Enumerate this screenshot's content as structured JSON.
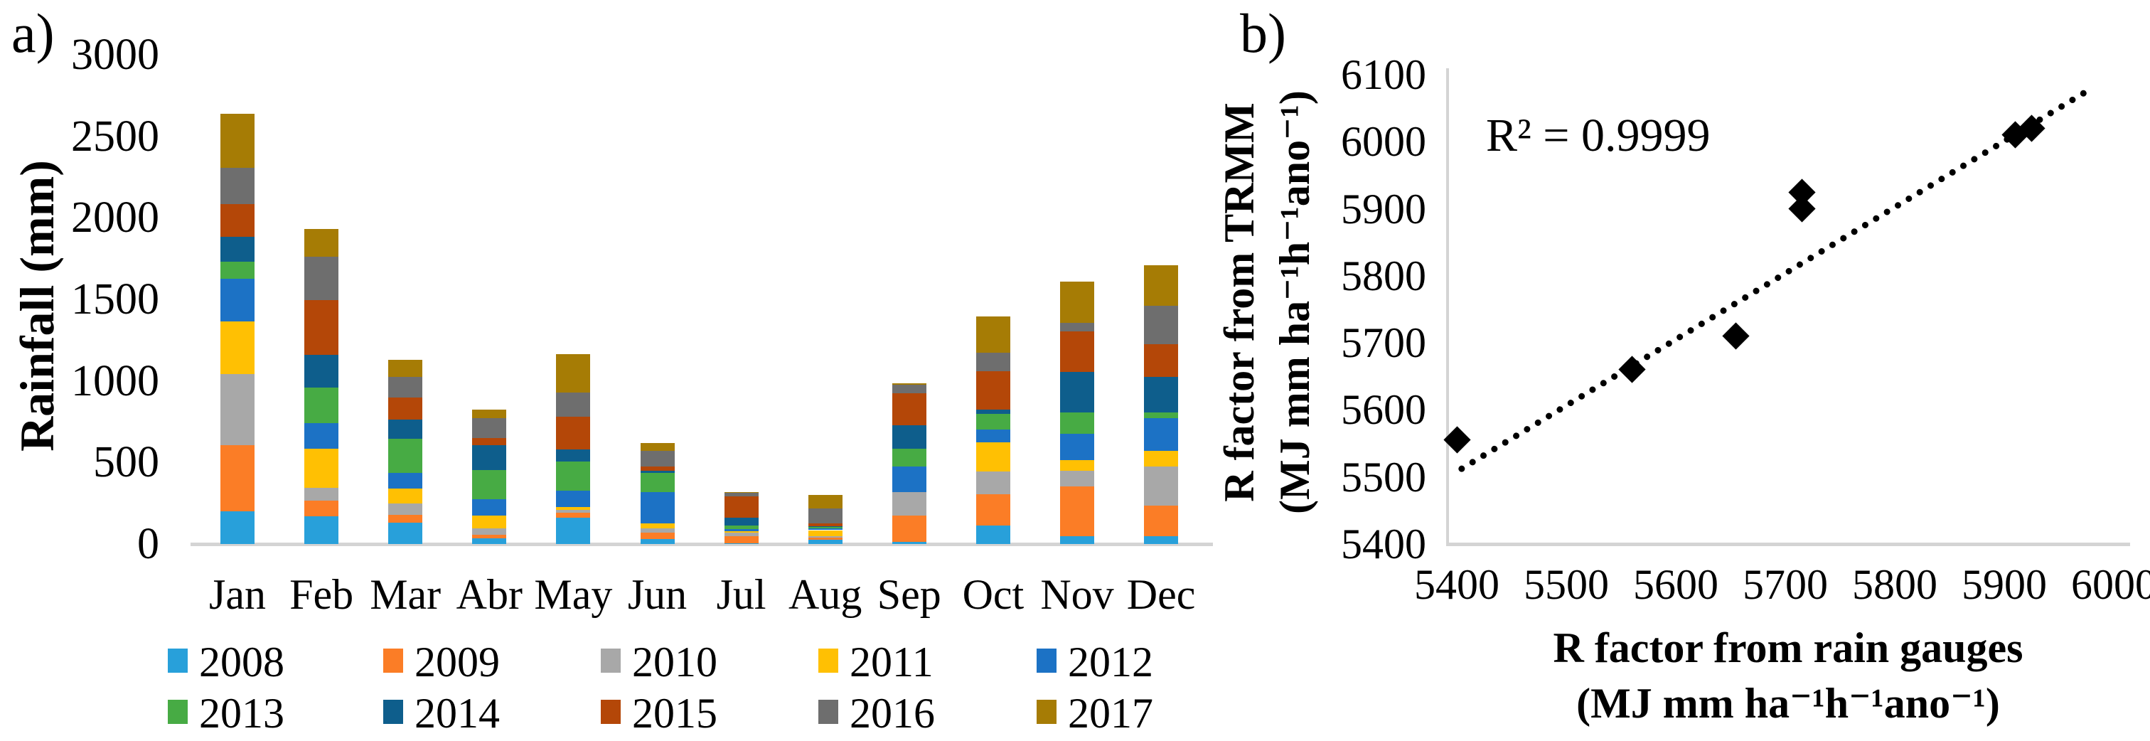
{
  "panels": {
    "a_label": "a)",
    "b_label": "b)"
  },
  "colors": {
    "axis_line": "#d4d4d4",
    "text": "#000000",
    "background": "#ffffff",
    "marker": "#000000"
  },
  "chart_data": [
    {
      "panel": "a",
      "type": "bar",
      "stacked": true,
      "title": "",
      "xlabel": "",
      "ylabel": "Rainfall (mm)",
      "ylim": [
        0,
        3000
      ],
      "yticks": [
        3000,
        2500,
        2000,
        1500,
        1000,
        500,
        0
      ],
      "grid": false,
      "legend_position": "bottom",
      "categories": [
        "Jan",
        "Feb",
        "Mar",
        "Abr",
        "May",
        "Jun",
        "Jul",
        "Aug",
        "Sep",
        "Oct",
        "Nov",
        "Dec"
      ],
      "series": [
        {
          "name": "2008",
          "color": "#28a0da",
          "values": [
            200,
            170,
            130,
            35,
            160,
            30,
            5,
            25,
            15,
            115,
            50,
            50
          ]
        },
        {
          "name": "2009",
          "color": "#fb7d26",
          "values": [
            405,
            95,
            50,
            20,
            30,
            40,
            45,
            15,
            160,
            190,
            305,
            185
          ]
        },
        {
          "name": "2010",
          "color": "#a8a8a8",
          "values": [
            435,
            80,
            70,
            40,
            20,
            25,
            20,
            10,
            145,
            140,
            95,
            240
          ]
        },
        {
          "name": "2011",
          "color": "#ffc003",
          "values": [
            325,
            240,
            90,
            80,
            15,
            30,
            10,
            35,
            0,
            180,
            65,
            95
          ]
        },
        {
          "name": "2012",
          "color": "#1c72c5",
          "values": [
            260,
            155,
            95,
            100,
            100,
            195,
            10,
            10,
            155,
            75,
            160,
            200
          ]
        },
        {
          "name": "2013",
          "color": "#47ab44",
          "values": [
            105,
            220,
            210,
            180,
            180,
            115,
            25,
            10,
            110,
            100,
            130,
            35
          ]
        },
        {
          "name": "2014",
          "color": "#0e5e8c",
          "values": [
            155,
            200,
            120,
            150,
            75,
            15,
            45,
            5,
            145,
            25,
            250,
            220
          ]
        },
        {
          "name": "2015",
          "color": "#b44708",
          "values": [
            200,
            335,
            135,
            45,
            200,
            25,
            130,
            15,
            195,
            235,
            250,
            200
          ]
        },
        {
          "name": "2016",
          "color": "#6e6e6e",
          "values": [
            220,
            265,
            125,
            120,
            150,
            95,
            25,
            95,
            50,
            115,
            50,
            235
          ]
        },
        {
          "name": "2017",
          "color": "#a67c05",
          "values": [
            335,
            170,
            105,
            55,
            235,
            50,
            5,
            80,
            10,
            220,
            255,
            250
          ]
        }
      ]
    },
    {
      "panel": "b",
      "type": "scatter",
      "title": "",
      "xlabel_lines": [
        "R factor from rain gauges",
        "(MJ mm ha⁻¹h⁻¹ano⁻¹)"
      ],
      "ylabel_lines": [
        "R factor from TRMM",
        "(MJ mm ha⁻¹h⁻¹ano⁻¹)"
      ],
      "xlim": [
        5400,
        6000
      ],
      "ylim": [
        5400,
        6100
      ],
      "xticks": [
        5400,
        5500,
        5600,
        5700,
        5800,
        5900,
        6000
      ],
      "yticks": [
        6100,
        6000,
        5900,
        5800,
        5700,
        5600,
        5500,
        5400
      ],
      "grid": false,
      "annotation": "R² = 0.9999",
      "marker": "diamond",
      "marker_color": "#000000",
      "points": [
        {
          "x": 5400,
          "y": 5555
        },
        {
          "x": 5560,
          "y": 5660
        },
        {
          "x": 5655,
          "y": 5710
        },
        {
          "x": 5715,
          "y": 5900
        },
        {
          "x": 5715,
          "y": 5925
        },
        {
          "x": 5910,
          "y": 6010
        },
        {
          "x": 5925,
          "y": 6020
        }
      ],
      "trendline": {
        "style": "dotted",
        "x_start": 5402,
        "y_start": 5515,
        "x_end": 5975,
        "y_end": 6080
      }
    }
  ]
}
